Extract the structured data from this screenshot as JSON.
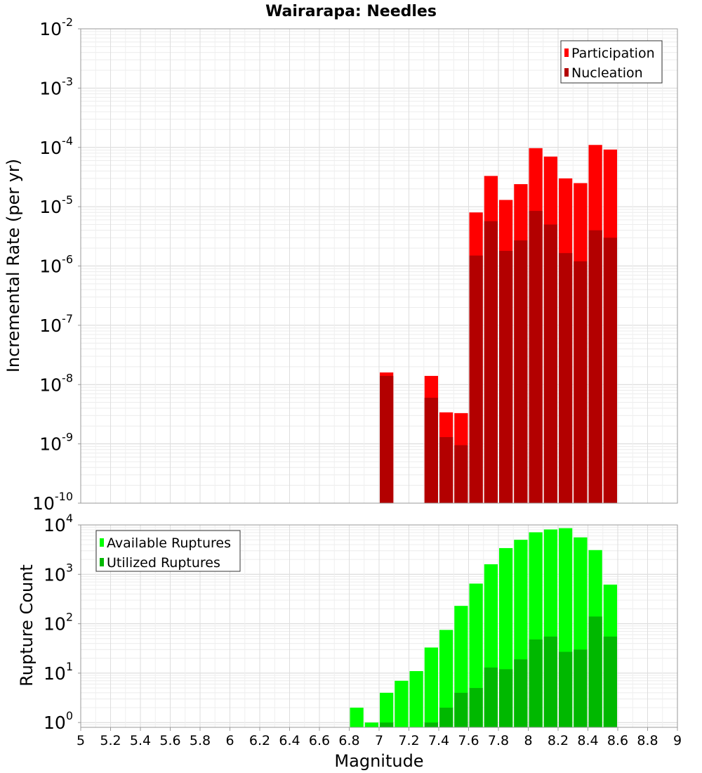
{
  "chart_data": [
    {
      "type": "bar",
      "title": "Wairarapa: Needles",
      "xlabel": "Magnitude",
      "ylabel": "Incremental Rate (per yr)",
      "yscale": "log",
      "ylim": [
        1e-10,
        0.01
      ],
      "xlim": [
        5,
        9
      ],
      "bin_width": 0.1,
      "grid": true,
      "legend_position": "top-right",
      "colors": {
        "Participation": "#ff0000",
        "Nucleation": "#b30000"
      },
      "series": [
        {
          "name": "Participation",
          "x": [
            7.05,
            7.35,
            7.45,
            7.55,
            7.65,
            7.75,
            7.85,
            7.95,
            8.05,
            8.15,
            8.25,
            8.35,
            8.45,
            8.55
          ],
          "values": [
            1.6e-08,
            1.4e-08,
            3.4e-09,
            3.3e-09,
            8e-06,
            3.3e-05,
            1.3e-05,
            2.4e-05,
            9.7e-05,
            7e-05,
            3e-05,
            2.5e-05,
            0.00011,
            9.2e-05
          ]
        },
        {
          "name": "Nucleation",
          "x": [
            7.05,
            7.35,
            7.45,
            7.55,
            7.65,
            7.75,
            7.85,
            7.95,
            8.05,
            8.15,
            8.25,
            8.35,
            8.45,
            8.55
          ],
          "values": [
            1.4e-08,
            6e-09,
            1.3e-09,
            9.5e-10,
            1.5e-06,
            5.7e-06,
            1.8e-06,
            2.7e-06,
            8.5e-06,
            5e-06,
            1.65e-06,
            1.2e-06,
            4e-06,
            3e-06
          ]
        }
      ]
    },
    {
      "type": "bar",
      "xlabel": "Magnitude",
      "ylabel": "Rupture Count",
      "yscale": "log",
      "ylim": [
        0.8,
        10000
      ],
      "xlim": [
        5,
        9
      ],
      "xticks": [
        "5",
        "5.2",
        "5.4",
        "5.6",
        "5.8",
        "6",
        "6.2",
        "6.4",
        "6.6",
        "6.8",
        "7",
        "7.2",
        "7.4",
        "7.6",
        "7.8",
        "8",
        "8.2",
        "8.4",
        "8.6",
        "8.8",
        "9"
      ],
      "bin_width": 0.1,
      "grid": true,
      "legend_position": "top-left",
      "colors": {
        "Available Ruptures": "#00ff00",
        "Utilized Ruptures": "#00b800"
      },
      "series": [
        {
          "name": "Available Ruptures",
          "x": [
            6.85,
            6.95,
            7.05,
            7.15,
            7.25,
            7.35,
            7.45,
            7.55,
            7.65,
            7.75,
            7.85,
            7.95,
            8.05,
            8.15,
            8.25,
            8.35,
            8.45,
            8.55
          ],
          "values": [
            2,
            1,
            4,
            7,
            11,
            33,
            75,
            230,
            650,
            1600,
            3400,
            5000,
            7100,
            8100,
            8600,
            5600,
            3100,
            620
          ]
        },
        {
          "name": "Utilized Ruptures",
          "x": [
            7.05,
            7.35,
            7.45,
            7.55,
            7.65,
            7.75,
            7.85,
            7.95,
            8.05,
            8.15,
            8.25,
            8.35,
            8.45,
            8.55
          ],
          "values": [
            1,
            1,
            2,
            4,
            5,
            13,
            12,
            19,
            48,
            55,
            27,
            30,
            140,
            55
          ]
        }
      ]
    }
  ]
}
